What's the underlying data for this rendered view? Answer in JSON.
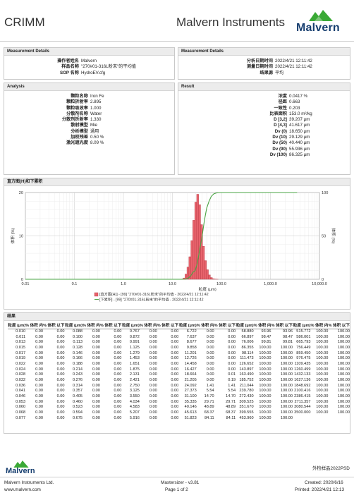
{
  "header": {
    "org": "CRIMM",
    "brand": "Malvern Instruments",
    "logo_text": "Malvern"
  },
  "measurement_details": {
    "title": "Measurement Details",
    "rows": [
      {
        "label": "操作者姓名",
        "value": "Malvern"
      },
      {
        "label": "样品名称",
        "value": "\"270#01-316L粉末\"的平均值"
      },
      {
        "label": "SOP 名称",
        "value": "HydroEV.cfg"
      }
    ]
  },
  "measurement_details_right": {
    "title": "Measurement Details",
    "rows": [
      {
        "label": "分析日期时间",
        "value": "2022/4/21 12:11:42"
      },
      {
        "label": "测量日期时间",
        "value": "2022/4/21 12:11:42"
      },
      {
        "label": "结果源",
        "value": "平均"
      }
    ]
  },
  "analysis": {
    "title": "Analysis",
    "rows": [
      {
        "label": "颗粒名称",
        "value": "Iron Fe"
      },
      {
        "label": "颗粒折射率",
        "value": "2.895"
      },
      {
        "label": "颗粒吸收率",
        "value": "1.000"
      },
      {
        "label": "分散剂名称",
        "value": "Water"
      },
      {
        "label": "分散剂折射率",
        "value": "1.330"
      },
      {
        "label": "散射模型",
        "value": "Mie"
      },
      {
        "label": "分析模型",
        "value": "通用"
      },
      {
        "label": "加权残差",
        "value": "0.50 %"
      },
      {
        "label": "激光遮光度",
        "value": "8.09 %"
      }
    ]
  },
  "result": {
    "title": "Result",
    "rows": [
      {
        "label": "浓度",
        "value": "0.0417 %"
      },
      {
        "label": "径距",
        "value": "0.663"
      },
      {
        "label": "一致性",
        "value": "0.203"
      },
      {
        "label": "比表面积",
        "value": "153.0 m²/kg"
      },
      {
        "label": "D [3,2]",
        "value": "39.207 µm"
      },
      {
        "label": "D [4,3]",
        "value": "41.617 µm"
      },
      {
        "label": "Dv (0)",
        "value": "18.650 µm"
      },
      {
        "label": "Dv (10)",
        "value": "29.129 µm"
      },
      {
        "label": "Dv (50)",
        "value": "40.440 µm"
      },
      {
        "label": "Dv (90)",
        "value": "55.936 µm"
      },
      {
        "label": "Dv (100)",
        "value": "86.325 µm"
      }
    ]
  },
  "chart_panel": {
    "title": "直方图(H)和下累积"
  },
  "chart_data": {
    "type": "bar",
    "title": "直方图(H)和下累积",
    "xlabel": "粒度 (µm)",
    "ylabel": "体积 (%)",
    "y2label": "体积 (%)",
    "x_scale": "log",
    "xlim": [
      0.01,
      10000
    ],
    "ylim": [
      0,
      20
    ],
    "y2lim": [
      0,
      100
    ],
    "x_ticks": [
      "0.01",
      "0.1",
      "1.0",
      "10.0",
      "100.0",
      "1,000.0",
      "10,000.0"
    ],
    "y_ticks": [
      "0",
      "10",
      "20"
    ],
    "y2_ticks": [
      "0",
      "50",
      "100"
    ],
    "grid": true,
    "legend_position": "bottom",
    "bins_edges": [
      15.0,
      16.44,
      18.02,
      19.76,
      21.66,
      23.74,
      26.03,
      28.53,
      31.28,
      34.29,
      37.59,
      41.21,
      45.17,
      49.52,
      54.29,
      59.51,
      65.24,
      71.52,
      78.4,
      85.94
    ],
    "series": [
      {
        "name": "[直方图(H)] - [99] \"270#01-316L粉末\"的平均值 - 2022/4/21 12:11:42",
        "color": "#e8636c",
        "values": [
          0.05,
          0.3,
          1.2,
          2.8,
          5.2,
          8.9,
          13.6,
          17.8,
          19.6,
          17.2,
          12.6,
          7.6,
          4.3,
          2.2,
          1.0,
          0.4,
          0.12,
          0.04,
          0.01
        ]
      },
      {
        "name": "[下累积] - [99] \"270#01-316L粉末\"的平均值 - 2022/4/21 12:11:42",
        "color": "#4aa544",
        "type": "line",
        "x": [
          0.01,
          15,
          18.65,
          20,
          22,
          24,
          26,
          29.13,
          32,
          35,
          40.44,
          45,
          50,
          55.94,
          62,
          70,
          80,
          86.33,
          100,
          1000,
          3500
        ],
        "values": [
          0,
          0,
          0.2,
          0.8,
          2.2,
          4.5,
          7.8,
          10.0,
          18.0,
          30.0,
          50.0,
          68.0,
          82.0,
          90.0,
          95.5,
          98.5,
          99.6,
          100,
          100,
          100,
          100
        ]
      }
    ],
    "legend": [
      "[直方图(H)] - [99] \"270#01-316L粉末\"的平均值 - 2022/4/21 12:11:42",
      "[下累积] - [99] \"270#01-316L粉末\"的平均值 - 2022/4/21 12:11:42"
    ]
  },
  "results_table": {
    "title": "结果",
    "headers": {
      "size": "粒度 (µm)",
      "vol_in": "% 体积 内",
      "vol_below": "% 体积 以下"
    },
    "columns": [
      [
        [
          "0.010",
          "0.00",
          "0.00"
        ],
        [
          "0.011",
          "0.00",
          "0.00"
        ],
        [
          "0.013",
          "0.00",
          "0.00"
        ],
        [
          "0.015",
          "0.00",
          "0.00"
        ],
        [
          "0.017",
          "0.00",
          "0.00"
        ],
        [
          "0.019",
          "0.00",
          "0.00"
        ],
        [
          "0.022",
          "0.00",
          "0.00"
        ],
        [
          "0.024",
          "0.00",
          "0.00"
        ],
        [
          "0.028",
          "0.00",
          "0.00"
        ],
        [
          "0.032",
          "0.00",
          "0.00"
        ],
        [
          "0.036",
          "0.00",
          "0.00"
        ],
        [
          "0.041",
          "0.00",
          "0.00"
        ],
        [
          "0.046",
          "0.00",
          "0.00"
        ],
        [
          "0.053",
          "0.00",
          "0.00"
        ],
        [
          "0.060",
          "0.00",
          "0.00"
        ],
        [
          "0.068",
          "0.00",
          "0.00"
        ],
        [
          "0.077",
          "0.00",
          "0.00"
        ]
      ],
      [
        [
          "0.088",
          "0.00",
          "0.00"
        ],
        [
          "0.100",
          "0.00",
          "0.00"
        ],
        [
          "0.113",
          "0.00",
          "0.00"
        ],
        [
          "0.128",
          "0.00",
          "0.00"
        ],
        [
          "0.146",
          "0.00",
          "0.00"
        ],
        [
          "0.166",
          "0.00",
          "0.00"
        ],
        [
          "0.188",
          "0.00",
          "0.00"
        ],
        [
          "0.214",
          "0.00",
          "0.00"
        ],
        [
          "0.243",
          "0.00",
          "0.00"
        ],
        [
          "0.276",
          "0.00",
          "0.00"
        ],
        [
          "0.314",
          "0.00",
          "0.00"
        ],
        [
          "0.357",
          "0.00",
          "0.00"
        ],
        [
          "0.405",
          "0.00",
          "0.00"
        ],
        [
          "0.460",
          "0.00",
          "0.00"
        ],
        [
          "0.523",
          "0.00",
          "0.00"
        ],
        [
          "0.594",
          "0.00",
          "0.00"
        ],
        [
          "0.675",
          "0.00",
          "0.00"
        ]
      ],
      [
        [
          "0.767",
          "0.00",
          "0.00"
        ],
        [
          "0.872",
          "0.00",
          "0.00"
        ],
        [
          "0.991",
          "0.00",
          "0.00"
        ],
        [
          "1.125",
          "0.00",
          "0.00"
        ],
        [
          "1.279",
          "0.00",
          "0.00"
        ],
        [
          "1.453",
          "0.00",
          "0.00"
        ],
        [
          "1.651",
          "0.00",
          "0.00"
        ],
        [
          "1.875",
          "0.00",
          "0.00"
        ],
        [
          "2.131",
          "0.00",
          "0.00"
        ],
        [
          "2.421",
          "0.00",
          "0.00"
        ],
        [
          "2.750",
          "0.00",
          "0.00"
        ],
        [
          "3.125",
          "0.00",
          "0.00"
        ],
        [
          "3.550",
          "0.00",
          "0.00"
        ],
        [
          "4.034",
          "0.00",
          "0.00"
        ],
        [
          "4.583",
          "0.00",
          "0.00"
        ],
        [
          "5.207",
          "0.00",
          "0.00"
        ],
        [
          "5.916",
          "0.00",
          "0.00"
        ]
      ],
      [
        [
          "6.722",
          "0.00",
          "0.00"
        ],
        [
          "7.637",
          "0.00",
          "0.00"
        ],
        [
          "8.677",
          "0.00",
          "0.00"
        ],
        [
          "9.858",
          "0.00",
          "0.00"
        ],
        [
          "11.201",
          "0.00",
          "0.00"
        ],
        [
          "12.726",
          "0.00",
          "0.00"
        ],
        [
          "14.458",
          "0.00",
          "0.00"
        ],
        [
          "16.427",
          "0.00",
          "0.00"
        ],
        [
          "18.664",
          "0.00",
          "0.01"
        ],
        [
          "21.205",
          "0.00",
          "0.19"
        ],
        [
          "24.092",
          "1.41",
          "1.41"
        ],
        [
          "27.373",
          "5.54",
          "5.54"
        ],
        [
          "31.100",
          "14.70",
          "14.70"
        ],
        [
          "35.335",
          "29.71",
          "29.71"
        ],
        [
          "40.146",
          "48.89",
          "48.89"
        ],
        [
          "45.613",
          "68.37",
          "68.37"
        ],
        [
          "51.823",
          "84.11",
          "84.11"
        ]
      ],
      [
        [
          "58.880",
          "93.96",
          "93.96"
        ],
        [
          "66.897",
          "98.47",
          "98.47"
        ],
        [
          "76.006",
          "99.81",
          "99.81"
        ],
        [
          "86.355",
          "100.00",
          "100.00"
        ],
        [
          "98.114",
          "100.00",
          "100.00"
        ],
        [
          "111.473",
          "100.00",
          "100.00"
        ],
        [
          "126.652",
          "100.00",
          "100.00"
        ],
        [
          "143.897",
          "100.00",
          "100.00"
        ],
        [
          "163.490",
          "100.00",
          "100.00"
        ],
        [
          "185.752",
          "100.00",
          "100.00"
        ],
        [
          "211.044",
          "100.00",
          "100.00"
        ],
        [
          "239.780",
          "100.00",
          "100.00"
        ],
        [
          "272.430",
          "100.00",
          "100.00"
        ],
        [
          "309.525",
          "100.00",
          "100.00"
        ],
        [
          "351.670",
          "100.00",
          "100.00"
        ],
        [
          "399.555",
          "100.00",
          "100.00"
        ],
        [
          "453.960",
          "100.00",
          "100.00"
        ]
      ],
      [
        [
          "515.772",
          "100.00",
          "100.00"
        ],
        [
          "586.001",
          "100.00",
          "100.00"
        ],
        [
          "665.793",
          "100.00",
          "100.00"
        ],
        [
          "756.449",
          "100.00",
          "100.00"
        ],
        [
          "859.450",
          "100.00",
          "100.00"
        ],
        [
          "976.475",
          "100.00",
          "100.00"
        ],
        [
          "1109.435",
          "100.00",
          "100.00"
        ],
        [
          "1260.499",
          "100.00",
          "100.00"
        ],
        [
          "1432.133",
          "100.00",
          "100.00"
        ],
        [
          "1627.136",
          "100.00",
          "100.00"
        ],
        [
          "1848.692",
          "100.00",
          "100.00"
        ],
        [
          "2100.416",
          "100.00",
          "100.00"
        ],
        [
          "2386.415",
          "100.00",
          "100.00"
        ],
        [
          "2711.357",
          "100.00",
          "100.00"
        ],
        [
          "3080.544",
          "100.00",
          "100.00"
        ],
        [
          "3500.000",
          "100.00",
          "100.00"
        ]
      ]
    ]
  },
  "footer": {
    "logo_text": "Malvern",
    "right_label": "外检样品2022PSD",
    "company": "Malvern Instruments Ltd.",
    "website": "www.malvern.com",
    "software": "Mastersizer - v3.81",
    "page": "Page 1 of 2",
    "created": "Created:  2020/6/16",
    "printed": "Printed: 2022/4/21 12:13"
  },
  "colors": {
    "brand_blue": "#163e6f",
    "logo_green": "#3aa935",
    "histogram": "#e8636c",
    "cumulative": "#4aa544"
  }
}
